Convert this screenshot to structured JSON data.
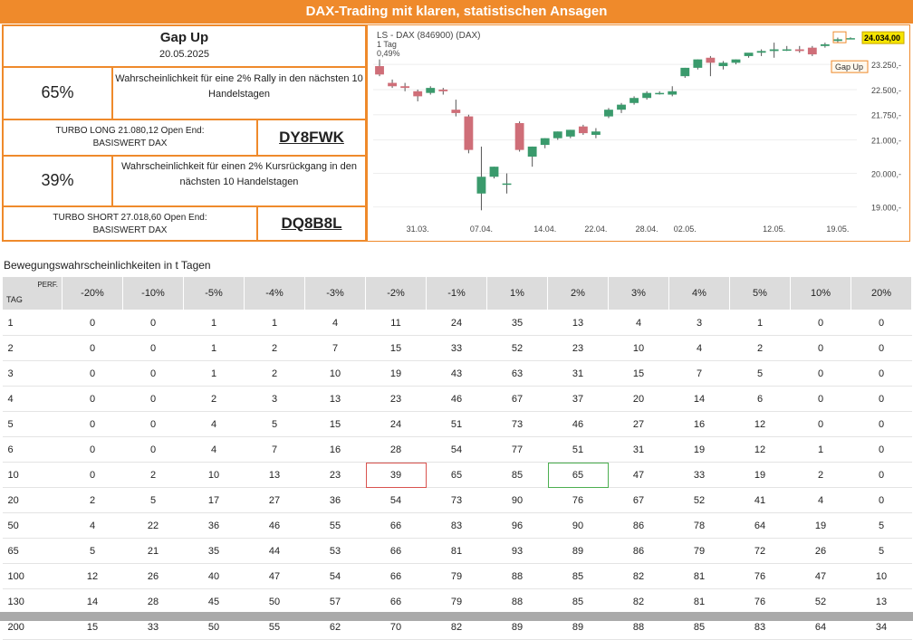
{
  "banner": "DAX-Trading mit klaren, statistischen Ansagen",
  "signal": {
    "title": "Gap Up",
    "date": "20.05.2025",
    "long_pct": "65%",
    "long_desc": "Wahrscheinlichkeit für eine 2% Rally in den nächsten 10 Handelstagen",
    "long_turbo": "TURBO LONG 21.080,12 Open End:",
    "long_base": "BASISWERT DAX",
    "long_code": "DY8FWK",
    "short_pct": "39%",
    "short_desc": "Wahrscheinlichkeit für einen 2% Kursrückgang in den nächsten 10 Handelstagen",
    "short_turbo": "TURBO SHORT 27.018,60 Open End:",
    "short_base": "BASISWERT DAX",
    "short_code": "DQ8B8L"
  },
  "chart_data": {
    "type": "candlestick",
    "title": "LS - DAX (846900) (DAX)",
    "subtitle": "1 Tag",
    "change": "0,49%",
    "last_value": "24.034,00",
    "annotation": "Gap Up",
    "ylim": [
      18800,
      24200
    ],
    "yticks": [
      {
        "v": 19000,
        "l": "19.000,-"
      },
      {
        "v": 20000,
        "l": "20.000,-"
      },
      {
        "v": 21000,
        "l": "21.000,-"
      },
      {
        "v": 21750,
        "l": "21.750,-"
      },
      {
        "v": 22500,
        "l": "22.500,-"
      },
      {
        "v": 23250,
        "l": "23.250,-"
      }
    ],
    "xticks": [
      {
        "i": 3,
        "l": "31.03."
      },
      {
        "i": 8,
        "l": "07.04."
      },
      {
        "i": 13,
        "l": "14.04."
      },
      {
        "i": 17,
        "l": "22.04."
      },
      {
        "i": 21,
        "l": "28.04."
      },
      {
        "i": 24,
        "l": "02.05."
      },
      {
        "i": 31,
        "l": "12.05."
      },
      {
        "i": 36,
        "l": "19.05."
      }
    ],
    "candles": [
      {
        "o": 23200,
        "h": 23400,
        "c": 22950,
        "l": 22900
      },
      {
        "o": 22700,
        "h": 22800,
        "c": 22600,
        "l": 22550
      },
      {
        "o": 22600,
        "h": 22700,
        "c": 22550,
        "l": 22450
      },
      {
        "o": 22450,
        "h": 22500,
        "c": 22300,
        "l": 22150
      },
      {
        "o": 22400,
        "h": 22600,
        "c": 22550,
        "l": 22350
      },
      {
        "o": 22500,
        "h": 22550,
        "c": 22450,
        "l": 22350
      },
      {
        "o": 21900,
        "h": 22200,
        "c": 21800,
        "l": 21700
      },
      {
        "o": 21700,
        "h": 21750,
        "c": 20700,
        "l": 20600
      },
      {
        "o": 19400,
        "h": 20800,
        "c": 19900,
        "l": 18900
      },
      {
        "o": 19900,
        "h": 20200,
        "c": 20200,
        "l": 19850
      },
      {
        "o": 19700,
        "h": 20000,
        "c": 19700,
        "l": 19400
      },
      {
        "o": 21500,
        "h": 21550,
        "c": 20700,
        "l": 20650
      },
      {
        "o": 20500,
        "h": 20800,
        "c": 20800,
        "l": 20200
      },
      {
        "o": 20850,
        "h": 21050,
        "c": 21050,
        "l": 20750
      },
      {
        "o": 21050,
        "h": 21250,
        "c": 21250,
        "l": 21000
      },
      {
        "o": 21100,
        "h": 21300,
        "c": 21300,
        "l": 21050
      },
      {
        "o": 21400,
        "h": 21450,
        "c": 21200,
        "l": 21150
      },
      {
        "o": 21150,
        "h": 21350,
        "c": 21250,
        "l": 21050
      },
      {
        "o": 21700,
        "h": 21950,
        "c": 21900,
        "l": 21650
      },
      {
        "o": 21900,
        "h": 22100,
        "c": 22050,
        "l": 21800
      },
      {
        "o": 22100,
        "h": 22300,
        "c": 22250,
        "l": 22050
      },
      {
        "o": 22250,
        "h": 22450,
        "c": 22400,
        "l": 22200
      },
      {
        "o": 22400,
        "h": 22450,
        "c": 22400,
        "l": 22350
      },
      {
        "o": 22350,
        "h": 22600,
        "c": 22450,
        "l": 22300
      },
      {
        "o": 22900,
        "h": 23150,
        "c": 23150,
        "l": 22850
      },
      {
        "o": 23150,
        "h": 23400,
        "c": 23400,
        "l": 23100
      },
      {
        "o": 23450,
        "h": 23500,
        "c": 23300,
        "l": 22900
      },
      {
        "o": 23200,
        "h": 23350,
        "c": 23300,
        "l": 23100
      },
      {
        "o": 23300,
        "h": 23400,
        "c": 23400,
        "l": 23250
      },
      {
        "o": 23500,
        "h": 23550,
        "c": 23600,
        "l": 23450
      },
      {
        "o": 23600,
        "h": 23700,
        "c": 23650,
        "l": 23500
      },
      {
        "o": 23650,
        "h": 23900,
        "c": 23700,
        "l": 23450
      },
      {
        "o": 23700,
        "h": 23800,
        "c": 23700,
        "l": 23650
      },
      {
        "o": 23700,
        "h": 23800,
        "c": 23650,
        "l": 23600
      },
      {
        "o": 23750,
        "h": 23800,
        "c": 23550,
        "l": 23500
      },
      {
        "o": 23800,
        "h": 23900,
        "c": 23850,
        "l": 23750
      },
      {
        "o": 23950,
        "h": 24050,
        "c": 24000,
        "l": 23900
      },
      {
        "o": 24034,
        "h": 24060,
        "c": 24034,
        "l": 24000
      }
    ],
    "colors": {
      "up": "#3a9a6c",
      "down": "#cf6e78"
    }
  },
  "table": {
    "section_title": "Bewegungswahrscheinlichkeiten in t Tagen",
    "corner_tag": "TAG",
    "corner_perf": "PERF.",
    "headers": [
      "-20%",
      "-10%",
      "-5%",
      "-4%",
      "-3%",
      "-2%",
      "-1%",
      "1%",
      "2%",
      "3%",
      "4%",
      "5%",
      "10%",
      "20%"
    ],
    "rows": [
      {
        "tag": "1",
        "v": [
          "0",
          "0",
          "1",
          "1",
          "4",
          "11",
          "24",
          "35",
          "13",
          "4",
          "3",
          "1",
          "0",
          "0"
        ]
      },
      {
        "tag": "2",
        "v": [
          "0",
          "0",
          "1",
          "2",
          "7",
          "15",
          "33",
          "52",
          "23",
          "10",
          "4",
          "2",
          "0",
          "0"
        ]
      },
      {
        "tag": "3",
        "v": [
          "0",
          "0",
          "1",
          "2",
          "10",
          "19",
          "43",
          "63",
          "31",
          "15",
          "7",
          "5",
          "0",
          "0"
        ]
      },
      {
        "tag": "4",
        "v": [
          "0",
          "0",
          "2",
          "3",
          "13",
          "23",
          "46",
          "67",
          "37",
          "20",
          "14",
          "6",
          "0",
          "0"
        ]
      },
      {
        "tag": "5",
        "v": [
          "0",
          "0",
          "4",
          "5",
          "15",
          "24",
          "51",
          "73",
          "46",
          "27",
          "16",
          "12",
          "0",
          "0"
        ]
      },
      {
        "tag": "6",
        "v": [
          "0",
          "0",
          "4",
          "7",
          "16",
          "28",
          "54",
          "77",
          "51",
          "31",
          "19",
          "12",
          "1",
          "0"
        ]
      },
      {
        "tag": "10",
        "v": [
          "0",
          "2",
          "10",
          "13",
          "23",
          "39",
          "65",
          "85",
          "65",
          "47",
          "33",
          "19",
          "2",
          "0"
        ]
      },
      {
        "tag": "20",
        "v": [
          "2",
          "5",
          "17",
          "27",
          "36",
          "54",
          "73",
          "90",
          "76",
          "67",
          "52",
          "41",
          "4",
          "0"
        ]
      },
      {
        "tag": "50",
        "v": [
          "4",
          "22",
          "36",
          "46",
          "55",
          "66",
          "83",
          "96",
          "90",
          "86",
          "78",
          "64",
          "19",
          "5"
        ]
      },
      {
        "tag": "65",
        "v": [
          "5",
          "21",
          "35",
          "44",
          "53",
          "66",
          "81",
          "93",
          "89",
          "86",
          "79",
          "72",
          "26",
          "5"
        ]
      },
      {
        "tag": "100",
        "v": [
          "12",
          "26",
          "40",
          "47",
          "54",
          "66",
          "79",
          "88",
          "85",
          "82",
          "81",
          "76",
          "47",
          "10"
        ]
      },
      {
        "tag": "130",
        "v": [
          "14",
          "28",
          "45",
          "50",
          "57",
          "66",
          "79",
          "88",
          "85",
          "82",
          "81",
          "76",
          "52",
          "13"
        ]
      },
      {
        "tag": "200",
        "v": [
          "15",
          "33",
          "50",
          "55",
          "62",
          "70",
          "82",
          "89",
          "89",
          "88",
          "85",
          "83",
          "64",
          "34"
        ]
      }
    ]
  }
}
